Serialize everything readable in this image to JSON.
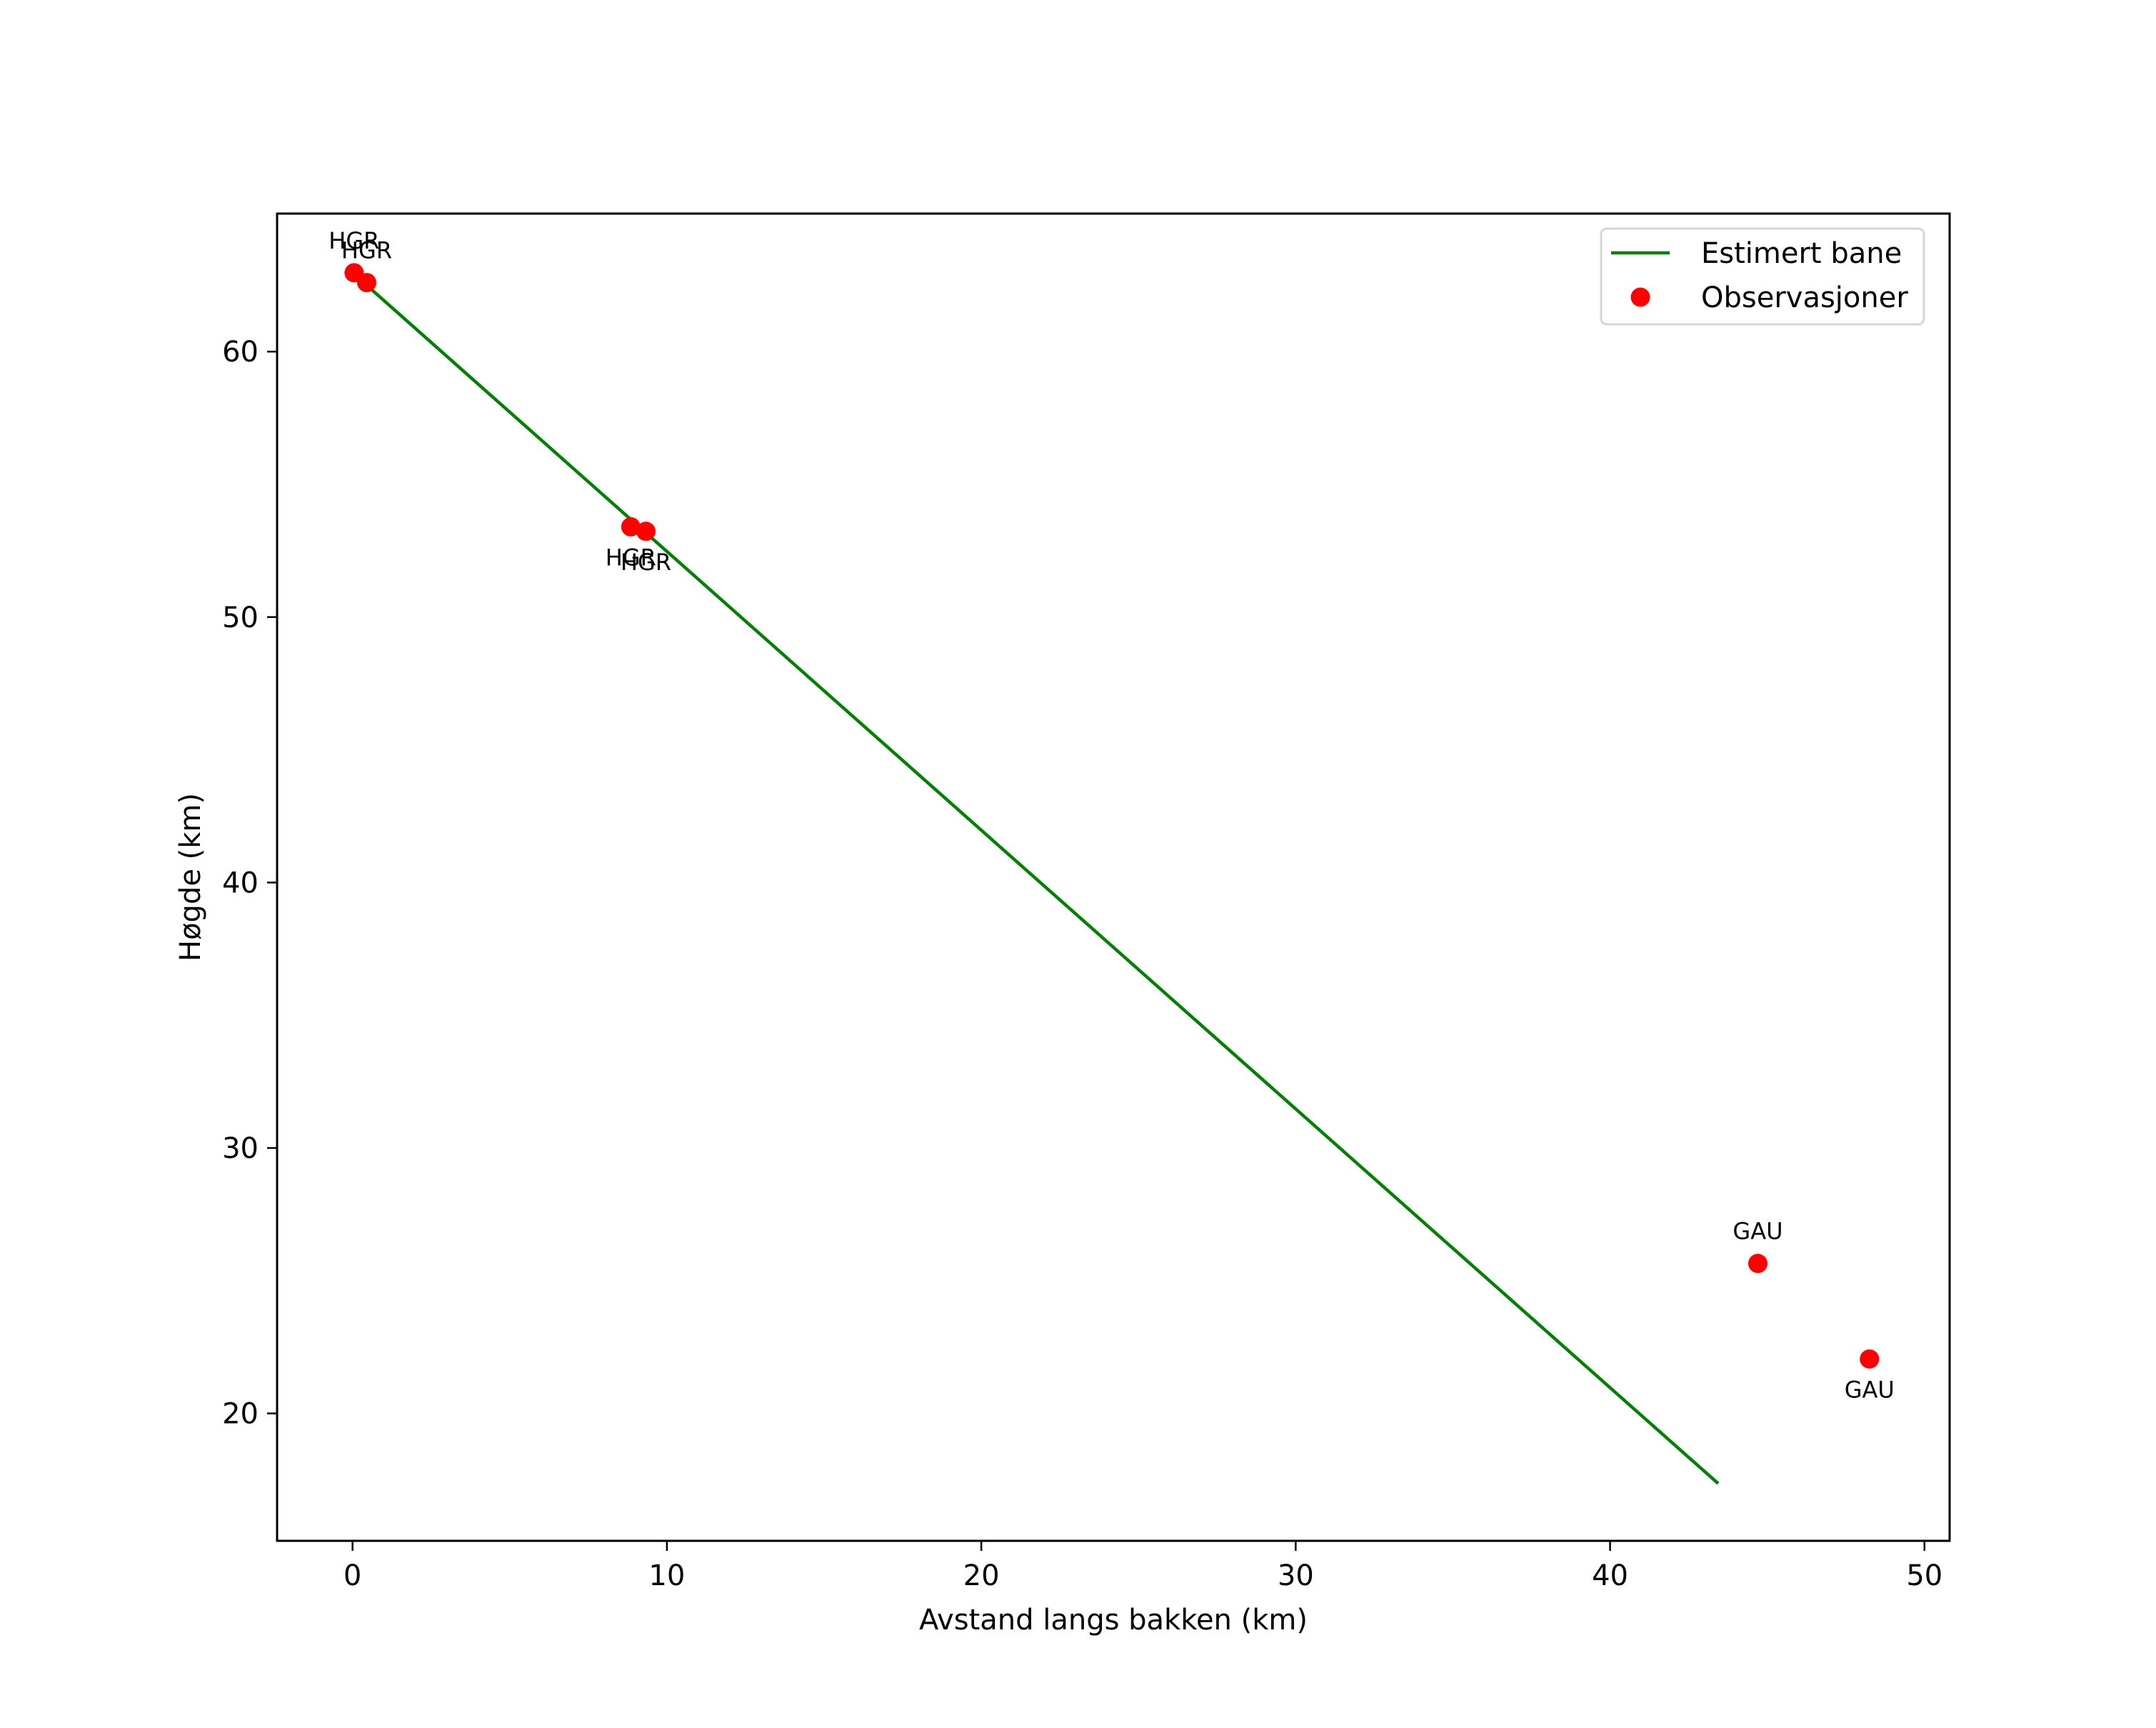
{
  "chart_data": {
    "type": "scatter",
    "title": "",
    "xlabel": "Avstand langs bakken (km)",
    "ylabel": "Høgde (km)",
    "xlim": [
      -2.4,
      50.8
    ],
    "ylim": [
      15.2,
      65.2
    ],
    "xticks": [
      0,
      10,
      20,
      30,
      40,
      50
    ],
    "yticks": [
      20,
      30,
      40,
      50,
      60
    ],
    "grid": false,
    "legend_position": "upper right",
    "series": [
      {
        "name": "Estimert bane",
        "kind": "line",
        "color": "#008000",
        "x": [
          0.45,
          43.4
        ],
        "y": [
          62.5,
          17.4
        ]
      },
      {
        "name": "Observasjoner",
        "kind": "scatter",
        "color": "#ff0000",
        "points": [
          {
            "x": 0.05,
            "y": 62.97,
            "label": "HGR",
            "label_pos": "above"
          },
          {
            "x": 0.45,
            "y": 62.6,
            "label": "HGR",
            "label_pos": "above"
          },
          {
            "x": 8.85,
            "y": 53.4,
            "label": "HGR",
            "label_pos": "below"
          },
          {
            "x": 9.33,
            "y": 53.23,
            "label": "HGR",
            "label_pos": "below"
          },
          {
            "x": 44.7,
            "y": 25.65,
            "label": "GAU",
            "label_pos": "above"
          },
          {
            "x": 48.25,
            "y": 22.05,
            "label": "GAU",
            "label_pos": "below"
          }
        ]
      }
    ]
  },
  "legend": {
    "items": [
      {
        "label": "Estimert bane",
        "marker": "line",
        "color": "#008000"
      },
      {
        "label": "Observasjoner",
        "marker": "circle",
        "color": "#ff0000"
      }
    ]
  }
}
